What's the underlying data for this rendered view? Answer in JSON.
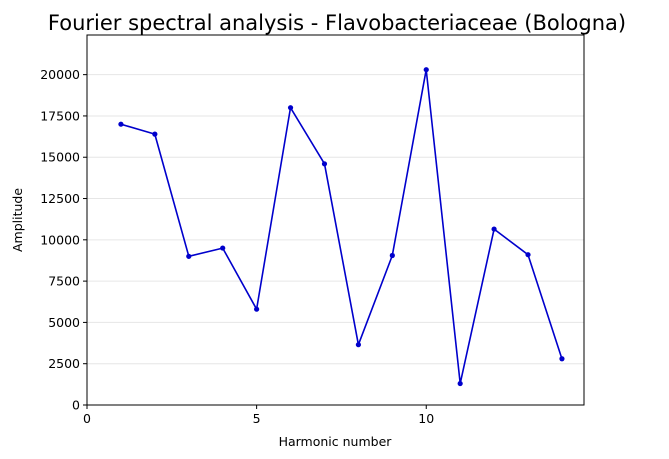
{
  "chart_data": {
    "type": "line",
    "title": "Fourier spectral analysis - Flavobacteriaceae (Bologna)",
    "xlabel": "Harmonic number",
    "ylabel": "Amplitude",
    "xlim": [
      0,
      14.65
    ],
    "ylim": [
      0,
      22400
    ],
    "x_ticks": [
      0,
      5,
      10
    ],
    "y_ticks": [
      0,
      2500,
      5000,
      7500,
      10000,
      12500,
      15000,
      17500,
      20000
    ],
    "grid": "horizontal",
    "line_color": "#0000cc",
    "series": [
      {
        "x": [
          1,
          2,
          3,
          4,
          5,
          6,
          7,
          8,
          9,
          10,
          11,
          12,
          13,
          14
        ],
        "values": [
          17000,
          16400,
          9000,
          9500,
          5800,
          18000,
          14600,
          3650,
          9050,
          20300,
          1300,
          10650,
          9100,
          2800
        ]
      }
    ]
  }
}
